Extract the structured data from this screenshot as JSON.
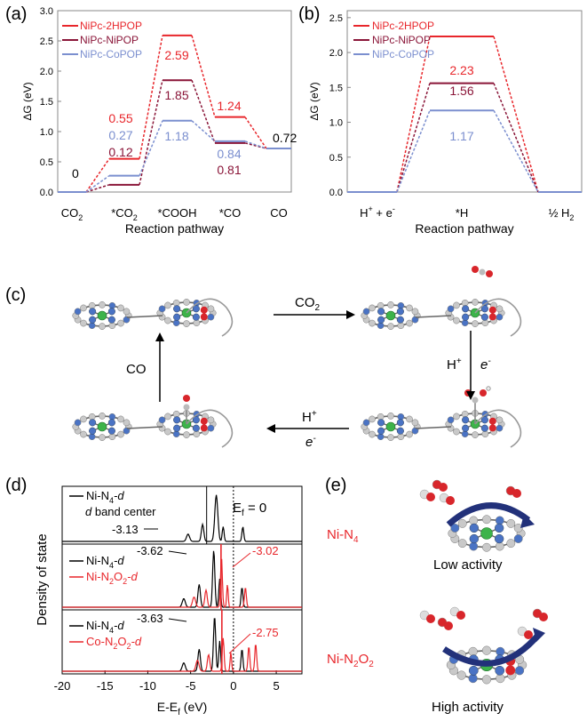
{
  "panel_labels": {
    "a": "(a)",
    "b": "(b)",
    "c": "(c)",
    "d": "(d)",
    "e": "(e)"
  },
  "colors": {
    "hpop": "#e8262b",
    "nipop": "#8a1538",
    "copop": "#7b8fcf",
    "axis": "#000000",
    "gray": "#999999",
    "green": "#3db34a",
    "blue": "#4a73c4",
    "red": "#d8262b"
  },
  "chart_data": [
    {
      "type": "line",
      "panel": "(a)",
      "ylabel": "ΔG (eV)",
      "xlabel": "Reaction pathway",
      "ylim": [
        0,
        3.0
      ],
      "yticks": [
        "0.0",
        "0.5",
        "1.0",
        "1.5",
        "2.0",
        "2.5",
        "3.0"
      ],
      "categories": [
        "CO2",
        "*CO2",
        "*COOH",
        "*CO",
        "CO"
      ],
      "category_labels": [
        [
          "CO",
          "2"
        ],
        [
          "*CO",
          "2"
        ],
        [
          "*COOH",
          ""
        ],
        [
          "*CO",
          ""
        ],
        [
          "CO",
          ""
        ]
      ],
      "series": [
        {
          "name": "NiPc-2HPOP",
          "values": [
            0,
            0.55,
            2.59,
            1.24,
            0.72
          ]
        },
        {
          "name": "NiPc-NiPOP",
          "values": [
            0,
            0.12,
            1.85,
            0.81,
            0.72
          ]
        },
        {
          "name": "NiPc-CoPOP",
          "values": [
            0,
            0.27,
            1.18,
            0.84,
            0.72
          ]
        }
      ],
      "annotations": {
        "start": "0",
        "end": "0.72",
        "hpop_co2": "0.55",
        "copop_co2": "0.27",
        "nipop_co2": "0.12",
        "hpop_cooh": "2.59",
        "nipop_cooh": "1.85",
        "copop_cooh": "1.18",
        "hpop_co": "1.24",
        "copop_co": "0.84",
        "nipop_co": "0.81"
      },
      "legend": "top-left"
    },
    {
      "type": "line",
      "panel": "(b)",
      "ylabel": "ΔG (eV)",
      "xlabel": "Reaction pathway",
      "ylim": [
        0,
        2.5
      ],
      "yticks": [
        "0.0",
        "0.5",
        "1.0",
        "1.5",
        "2.0",
        "2.5"
      ],
      "categories": [
        "H+ + e-",
        "*H",
        "½ H2"
      ],
      "series": [
        {
          "name": "NiPc-2HPOP",
          "values": [
            0,
            2.23,
            0
          ]
        },
        {
          "name": "NiPc-NiPOP",
          "values": [
            0,
            1.56,
            0
          ]
        },
        {
          "name": "NiPc-CoPOP",
          "values": [
            0,
            1.17,
            0
          ]
        }
      ],
      "annotations": {
        "hpop": "2.23",
        "nipop": "1.56",
        "copop": "1.17"
      },
      "legend": "top-left"
    },
    {
      "type": "line",
      "panel": "(d)",
      "ylabel": "Density of state",
      "xlabel": "E-E",
      "xlabel_sub": "f",
      "xlabel_unit": " (eV)",
      "xlim": [
        -20,
        8
      ],
      "xticks": [
        "-20",
        "-15",
        "-10",
        "-5",
        "0",
        "5"
      ],
      "subpanels": [
        {
          "legend": [
            {
              "name": "Ni-N4-d",
              "base": "Ni-N",
              "sub": "4",
              "tail": "-d",
              "color": "#000000"
            }
          ],
          "centers": [
            {
              "label": "-3.13",
              "x": -3.13,
              "color": "#000000"
            }
          ],
          "note": "d band center",
          "fermi_label": "E",
          "fermi_sub": "f",
          "fermi_tail": " = 0"
        },
        {
          "legend": [
            {
              "name": "Ni-N4-d",
              "base": "Ni-N",
              "sub": "4",
              "tail": "-d",
              "color": "#000000"
            },
            {
              "name": "Ni-N2O2-d",
              "base": "Ni-N",
              "sub": "2",
              "mid": "O",
              "sub2": "2",
              "tail": "-d",
              "color": "#e8262b"
            }
          ],
          "centers": [
            {
              "label": "-3.62",
              "x": -3.62,
              "color": "#000000"
            },
            {
              "label": "-3.02",
              "x": -3.02,
              "color": "#e8262b"
            }
          ]
        },
        {
          "legend": [
            {
              "name": "Ni-N4-d",
              "base": "Ni-N",
              "sub": "4",
              "tail": "-d",
              "color": "#000000"
            },
            {
              "name": "Co-N2O2-d",
              "base": "Co-N",
              "sub": "2",
              "mid": "O",
              "sub2": "2",
              "tail": "-d",
              "color": "#e8262b"
            }
          ],
          "centers": [
            {
              "label": "-3.63",
              "x": -3.63,
              "color": "#000000"
            },
            {
              "label": "-2.75",
              "x": -2.75,
              "color": "#e8262b"
            }
          ]
        }
      ]
    }
  ],
  "scheme_c": {
    "top_arrow": "CO",
    "top_arrow_sub": "2",
    "right_arrow_h": "H",
    "right_arrow_e": "e",
    "bottom_arrow_h": "H",
    "bottom_arrow_e": "e",
    "left_arrow": "CO"
  },
  "panel_e": {
    "top_label_base": "Ni-N",
    "top_label_sub": "4",
    "top_caption": "Low activity",
    "bottom_label_base": "Ni-N",
    "bottom_label_sub": "2",
    "bottom_label_mid": "O",
    "bottom_label_sub2": "2",
    "bottom_caption": "High activity"
  }
}
